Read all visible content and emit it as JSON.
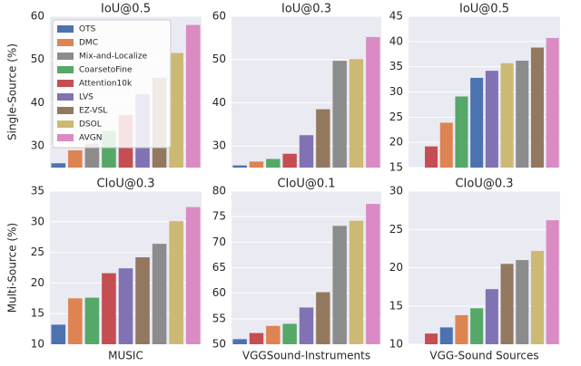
{
  "chart_data": [
    {
      "type": "bar",
      "title": "IoU@0.5",
      "ylabel": "Single-Source (%)",
      "legend": [
        {
          "name": "OTS",
          "color": "#4c72b0"
        },
        {
          "name": "DMC",
          "color": "#dd8452"
        },
        {
          "name": "Mix-and-Localize",
          "color": "#8c8c8c"
        },
        {
          "name": "CoarsetoFine",
          "color": "#55a868"
        },
        {
          "name": "Attention10k",
          "color": "#c44e52"
        },
        {
          "name": "LVS",
          "color": "#8172b3"
        },
        {
          "name": "EZ-VSL",
          "color": "#937860"
        },
        {
          "name": "DSOL",
          "color": "#ccb974"
        },
        {
          "name": "AVGN",
          "color": "#da8bc3"
        }
      ],
      "categories": [
        "OTS",
        "DMC",
        "Mix-and-Localize",
        "CoarsetoFine",
        "Attention10k",
        "LVS",
        "EZ-VSL",
        "DSOL",
        "AVGN"
      ],
      "values": [
        26,
        29,
        30.5,
        33.5,
        37.2,
        42,
        45.8,
        51.5,
        58
      ],
      "ylim": [
        25,
        60
      ],
      "yticks": [
        30,
        40,
        50,
        60
      ]
    },
    {
      "type": "bar",
      "title": "IoU@0.3",
      "categories": [
        "OTS",
        "DMC",
        "CoarsetoFine",
        "Attention10k",
        "LVS",
        "EZ-VSL",
        "Mix-and-Localize",
        "DSOL",
        "AVGN"
      ],
      "values": [
        25.5,
        26.4,
        27,
        28.2,
        32.5,
        38.5,
        49.7,
        50.1,
        55.2
      ],
      "ylim": [
        25,
        60
      ],
      "yticks": [
        30,
        40,
        50,
        60
      ]
    },
    {
      "type": "bar",
      "title": "IoU@0.5",
      "categories": [
        null,
        "Attention10k",
        "DMC",
        "CoarsetoFine",
        "OTS",
        "LVS",
        "DSOL",
        "Mix-and-Localize",
        "EZ-VSL",
        "AVGN"
      ],
      "values": [
        null,
        19.2,
        23.9,
        29.1,
        32.8,
        34.2,
        35.7,
        36.2,
        38.8,
        40.7
      ],
      "ylim": [
        15,
        45
      ],
      "yticks": [
        15,
        20,
        25,
        30,
        35,
        40,
        45
      ]
    },
    {
      "type": "bar",
      "title": "CIoU@0.3",
      "ylabel": "Multi-Source (%)",
      "xlabel": "MUSIC",
      "categories": [
        "OTS",
        "DMC",
        "CoarsetoFine",
        "Attention10k",
        "LVS",
        "EZ-VSL",
        "Mix-and-Localize",
        "DSOL",
        "AVGN"
      ],
      "values": [
        13.2,
        17.5,
        17.6,
        21.6,
        22.4,
        24.2,
        26.4,
        30.1,
        32.4
      ],
      "ylim": [
        10,
        35
      ],
      "yticks": [
        10,
        15,
        20,
        25,
        30,
        35
      ]
    },
    {
      "type": "bar",
      "title": "CIoU@0.1",
      "xlabel": "VGGSound-Instruments",
      "categories": [
        "OTS",
        "Attention10k",
        "DMC",
        "CoarsetoFine",
        "LVS",
        "EZ-VSL",
        "Mix-and-Localize",
        "DSOL",
        "AVGN"
      ],
      "values": [
        51,
        52.2,
        53.6,
        54,
        57.2,
        60.2,
        73.2,
        74.2,
        77.5
      ],
      "ylim": [
        50,
        80
      ],
      "yticks": [
        50,
        55,
        60,
        65,
        70,
        75,
        80
      ]
    },
    {
      "type": "bar",
      "title": "CIoU@0.3",
      "xlabel": "VGG-Sound Sources",
      "categories": [
        null,
        "Attention10k",
        "OTS",
        "DMC",
        "CoarsetoFine",
        "LVS",
        "EZ-VSL",
        "Mix-and-Localize",
        "DSOL",
        "AVGN"
      ],
      "values": [
        null,
        11.4,
        12.2,
        13.8,
        14.7,
        17.2,
        20.5,
        21,
        22.2,
        26.2
      ],
      "ylim": [
        10,
        30
      ],
      "yticks": [
        10,
        15,
        20,
        25,
        30
      ]
    }
  ]
}
